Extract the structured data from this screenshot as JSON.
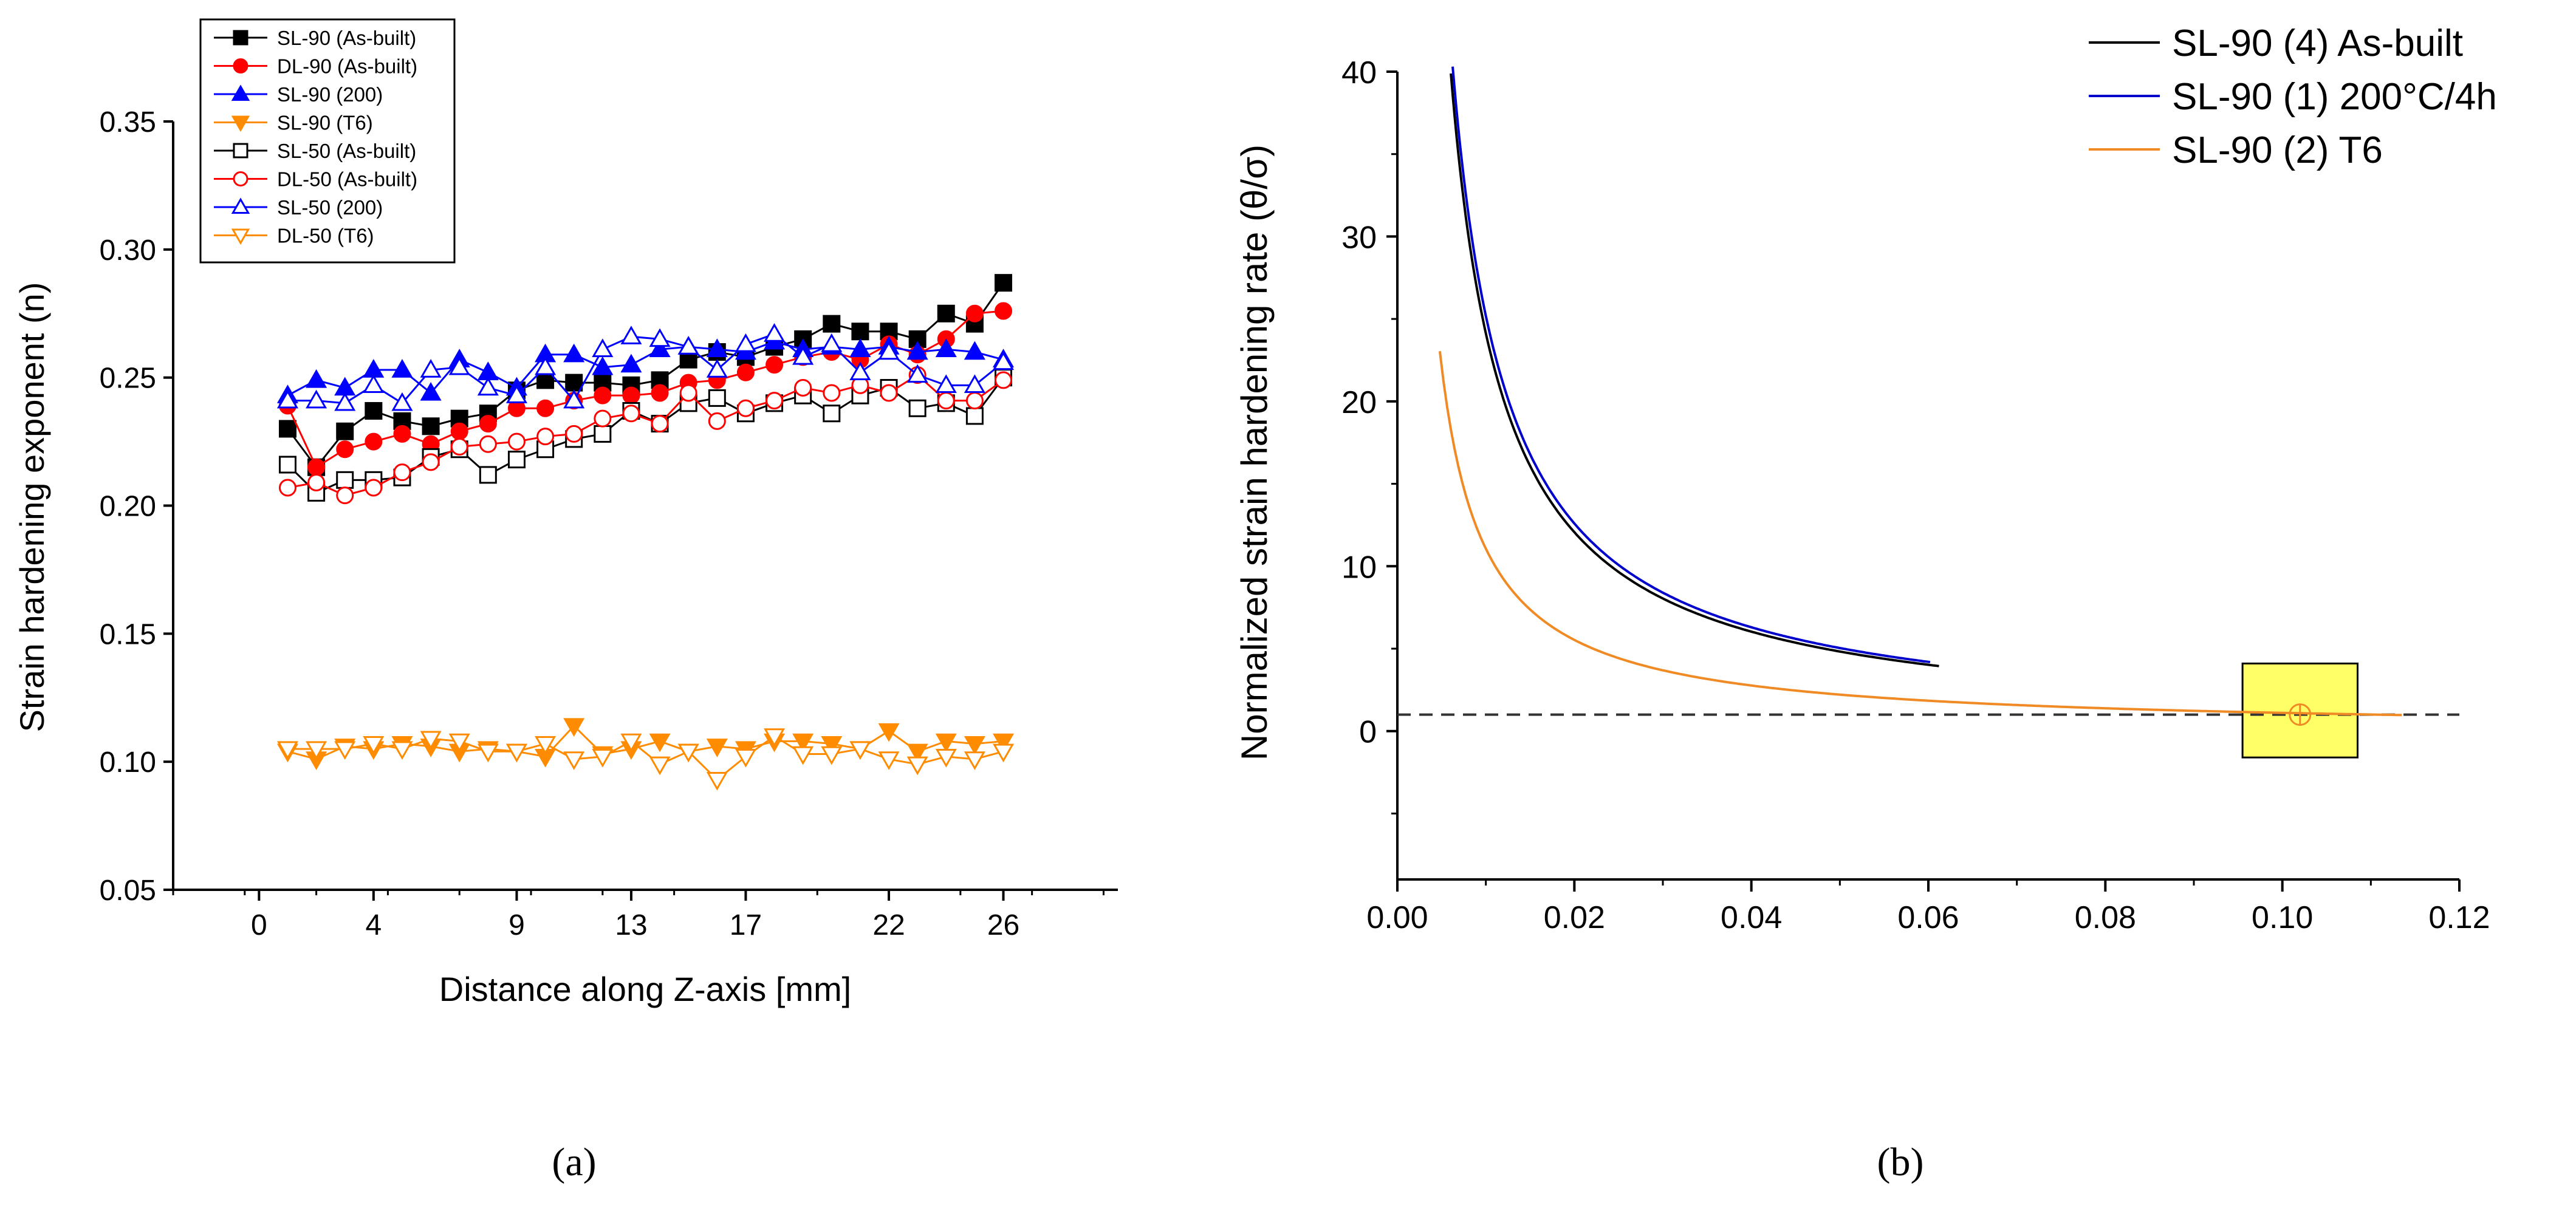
{
  "panels": {
    "a_label": "(a)",
    "b_label": "(b)"
  },
  "chart_data": [
    {
      "id": "a",
      "type": "line",
      "title": "",
      "xlabel": "Distance along Z-axis [mm]",
      "ylabel": "Strain hardening exponent (n)",
      "xlim": [
        -3,
        30
      ],
      "ylim": [
        0.05,
        0.35
      ],
      "xticks": [
        0,
        4,
        9,
        13,
        17,
        22,
        26
      ],
      "xtick_labels": [
        "0",
        "4",
        "9",
        "13",
        "17",
        "22",
        "26"
      ],
      "yticks": [
        0.05,
        0.1,
        0.15,
        0.2,
        0.25,
        0.3,
        0.35
      ],
      "ytick_labels": [
        "0.05",
        "0.10",
        "0.15",
        "0.20",
        "0.25",
        "0.30",
        "0.35"
      ],
      "grid": false,
      "legend_position": "top-left",
      "x": [
        1,
        2,
        3,
        4,
        5,
        6,
        7,
        8,
        9,
        10,
        11,
        12,
        13,
        14,
        15,
        16,
        17,
        18,
        19,
        20,
        21,
        22,
        23,
        24,
        25,
        26
      ],
      "series": [
        {
          "name": "SL-90 (As-built)",
          "color": "#000000",
          "marker": "square",
          "filled": true,
          "values": [
            0.23,
            0.215,
            0.229,
            0.237,
            0.233,
            0.231,
            0.234,
            0.236,
            0.245,
            0.249,
            0.248,
            0.248,
            0.247,
            0.249,
            0.257,
            0.26,
            0.258,
            0.262,
            0.265,
            0.271,
            0.268,
            0.268,
            0.265,
            0.275,
            0.271,
            0.287
          ]
        },
        {
          "name": "DL-90 (As-built)",
          "color": "#ff0000",
          "marker": "circle",
          "filled": true,
          "values": [
            0.239,
            0.215,
            0.222,
            0.225,
            0.228,
            0.224,
            0.229,
            0.232,
            0.238,
            0.238,
            0.241,
            0.243,
            0.243,
            0.244,
            0.248,
            0.249,
            0.252,
            0.255,
            0.258,
            0.26,
            0.257,
            0.263,
            0.259,
            0.265,
            0.275,
            0.276
          ]
        },
        {
          "name": "SL-90 (200)",
          "color": "#0000ff",
          "marker": "triangle-up",
          "filled": true,
          "values": [
            0.243,
            0.249,
            0.246,
            0.253,
            0.253,
            0.244,
            0.257,
            0.252,
            0.246,
            0.259,
            0.259,
            0.254,
            0.255,
            0.261,
            0.262,
            0.261,
            0.26,
            0.264,
            0.261,
            0.262,
            0.261,
            0.262,
            0.26,
            0.261,
            0.26,
            0.257
          ]
        },
        {
          "name": "SL-90 (T6)",
          "color": "#ff8c00",
          "marker": "triangle-down",
          "filled": true,
          "values": [
            0.104,
            0.101,
            0.106,
            0.105,
            0.107,
            0.106,
            0.104,
            0.105,
            0.104,
            0.102,
            0.114,
            0.103,
            0.105,
            0.108,
            0.104,
            0.106,
            0.105,
            0.108,
            0.108,
            0.107,
            0.105,
            0.112,
            0.104,
            0.108,
            0.107,
            0.108
          ]
        },
        {
          "name": "SL-50 (As-built)",
          "color": "#000000",
          "marker": "square",
          "filled": false,
          "values": [
            0.216,
            0.205,
            0.21,
            0.21,
            0.211,
            0.219,
            0.222,
            0.212,
            0.218,
            0.222,
            0.226,
            0.228,
            0.237,
            0.232,
            0.24,
            0.242,
            0.236,
            0.24,
            0.243,
            0.236,
            0.243,
            0.246,
            0.238,
            0.24,
            0.235,
            0.25
          ]
        },
        {
          "name": "DL-50 (As-built)",
          "color": "#ff0000",
          "marker": "circle",
          "filled": false,
          "values": [
            0.207,
            0.209,
            0.204,
            0.207,
            0.213,
            0.217,
            0.223,
            0.224,
            0.225,
            0.227,
            0.228,
            0.234,
            0.236,
            0.232,
            0.244,
            0.233,
            0.238,
            0.241,
            0.246,
            0.244,
            0.247,
            0.244,
            0.251,
            0.241,
            0.241,
            0.249
          ]
        },
        {
          "name": "SL-50 (200)",
          "color": "#0000ff",
          "marker": "triangle-up",
          "filled": false,
          "values": [
            0.241,
            0.241,
            0.24,
            0.247,
            0.24,
            0.253,
            0.254,
            0.246,
            0.243,
            0.254,
            0.241,
            0.261,
            0.266,
            0.265,
            0.262,
            0.253,
            0.263,
            0.267,
            0.258,
            0.263,
            0.252,
            0.26,
            0.251,
            0.247,
            0.247,
            0.256
          ]
        },
        {
          "name": "DL-50 (T6)",
          "color": "#ff8c00",
          "marker": "triangle-down",
          "filled": false,
          "values": [
            0.105,
            0.105,
            0.105,
            0.107,
            0.105,
            0.109,
            0.108,
            0.104,
            0.104,
            0.107,
            0.101,
            0.102,
            0.108,
            0.099,
            0.104,
            0.093,
            0.102,
            0.11,
            0.103,
            0.103,
            0.105,
            0.101,
            0.099,
            0.102,
            0.101,
            0.104
          ]
        }
      ]
    },
    {
      "id": "b",
      "type": "line",
      "title": "",
      "xlabel": "",
      "ylabel": "Normalized strain hardening rate (θ/σ)",
      "xlim": [
        0.0,
        0.12
      ],
      "ylim": [
        -9,
        40
      ],
      "xticks": [
        0.0,
        0.02,
        0.04,
        0.06,
        0.08,
        0.1,
        0.12
      ],
      "xtick_labels": [
        "0.00",
        "0.02",
        "0.04",
        "0.06",
        "0.08",
        "0.10",
        "0.12"
      ],
      "yticks": [
        0,
        10,
        20,
        30,
        40
      ],
      "ytick_labels": [
        "0",
        "10",
        "20",
        "30",
        "40"
      ],
      "grid": false,
      "legend_position": "top-right",
      "series": [
        {
          "name": "SL-90 (4) As-built",
          "color": "#000000",
          "coef": 0.2413,
          "x_start": 0.00605,
          "x_end": 0.0612
        },
        {
          "name": "SL-90 (1) 200°C/4h",
          "color": "#0000cc",
          "coef": 0.2519,
          "x_start": 0.00625,
          "x_end": 0.0602
        },
        {
          "name": "SL-90 (2) T6",
          "color": "#f08a24",
          "coef": 0.1106,
          "x_start": 0.0048,
          "x_end": 0.1135
        }
      ],
      "reference_line": {
        "y": 1,
        "style": "dashed",
        "color": "#333333"
      },
      "annotation": {
        "type": "highlight-box",
        "x": [
          0.0955,
          0.1085
        ],
        "y": [
          -1.6,
          4.1
        ],
        "fill": "#ffff66",
        "marker": {
          "x": 0.102,
          "y": 1.0
        }
      }
    }
  ]
}
